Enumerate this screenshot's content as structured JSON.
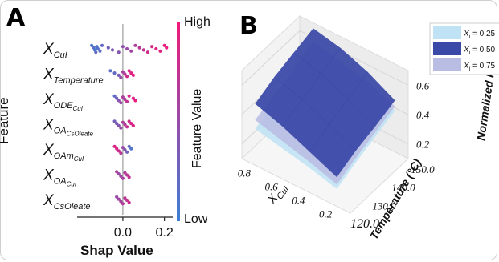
{
  "panels": {
    "a_label": "A",
    "b_label": "B"
  },
  "chart_data": [
    {
      "type": "scatter",
      "variant": "shap-beeswarm",
      "ylabel": "Feature",
      "xlabel": "Shap Value",
      "xticks": [
        "0.0",
        "0.2"
      ],
      "xtick_values": [
        0.0,
        0.2
      ],
      "xlim": [
        -0.22,
        0.24
      ],
      "colorbar": {
        "label": "Feature Value",
        "high": "High",
        "low": "Low",
        "low_color": "#3d7fd6",
        "high_color": "#f0197a"
      },
      "features": [
        {
          "main": "X",
          "sub": "CuI"
        },
        {
          "main": "X",
          "sub": "Temperature"
        },
        {
          "main": "X",
          "sub": "ODE",
          "sub2": "CuI"
        },
        {
          "main": "X",
          "sub": "OA",
          "sub2": "CsOleate"
        },
        {
          "main": "X",
          "sub": "OAm",
          "sub2": "CuI"
        },
        {
          "main": "X",
          "sub": "OA",
          "sub2": "CuI"
        },
        {
          "main": "X",
          "sub": "CsOleate"
        }
      ],
      "points": [
        [
          [
            -0.15,
            0.1
          ],
          [
            -0.14,
            0.15
          ],
          [
            -0.135,
            0.05
          ],
          [
            -0.13,
            0.2
          ],
          [
            -0.125,
            0.1
          ],
          [
            -0.12,
            0.12
          ],
          [
            -0.11,
            0.18
          ],
          [
            -0.1,
            0.2
          ],
          [
            -0.07,
            0.3
          ],
          [
            -0.05,
            0.35
          ],
          [
            -0.02,
            0.4
          ],
          [
            0.0,
            0.45
          ],
          [
            0.02,
            0.5
          ],
          [
            0.04,
            0.55
          ],
          [
            0.06,
            0.6
          ],
          [
            0.08,
            0.7
          ],
          [
            0.1,
            0.75
          ],
          [
            0.12,
            0.8
          ],
          [
            0.14,
            0.85
          ],
          [
            0.16,
            0.9
          ],
          [
            0.18,
            0.92
          ],
          [
            0.2,
            0.95
          ],
          [
            0.21,
            0.98
          ]
        ],
        [
          [
            -0.06,
            0.15
          ],
          [
            -0.04,
            0.2
          ],
          [
            -0.02,
            0.3
          ],
          [
            -0.01,
            0.5
          ],
          [
            0.0,
            0.6
          ],
          [
            0.01,
            0.7
          ],
          [
            0.02,
            0.8
          ],
          [
            0.03,
            0.85
          ],
          [
            0.04,
            0.9
          ],
          [
            0.05,
            0.95
          ]
        ],
        [
          [
            -0.04,
            0.2
          ],
          [
            -0.03,
            0.3
          ],
          [
            -0.02,
            0.4
          ],
          [
            -0.01,
            0.5
          ],
          [
            0.0,
            0.6
          ],
          [
            0.01,
            0.7
          ],
          [
            0.02,
            0.75
          ],
          [
            0.03,
            0.85
          ],
          [
            0.05,
            0.9
          ],
          [
            0.06,
            0.95
          ]
        ],
        [
          [
            -0.04,
            0.3
          ],
          [
            -0.03,
            0.35
          ],
          [
            -0.02,
            0.4
          ],
          [
            -0.01,
            0.5
          ],
          [
            0.0,
            0.6
          ],
          [
            0.01,
            0.65
          ],
          [
            0.02,
            0.75
          ],
          [
            0.03,
            0.8
          ],
          [
            0.04,
            0.85
          ],
          [
            0.05,
            0.9
          ]
        ],
        [
          [
            -0.04,
            0.9
          ],
          [
            -0.03,
            0.85
          ],
          [
            -0.02,
            0.8
          ],
          [
            -0.01,
            0.7
          ],
          [
            0.0,
            0.5
          ],
          [
            0.01,
            0.4
          ],
          [
            0.02,
            0.3
          ],
          [
            0.03,
            0.2
          ],
          [
            0.04,
            0.1
          ]
        ],
        [
          [
            -0.03,
            0.6
          ],
          [
            -0.02,
            0.5
          ],
          [
            -0.01,
            0.55
          ],
          [
            0.0,
            0.6
          ],
          [
            0.01,
            0.65
          ],
          [
            0.02,
            0.7
          ],
          [
            0.03,
            0.75
          ]
        ],
        [
          [
            -0.03,
            0.5
          ],
          [
            -0.02,
            0.55
          ],
          [
            -0.01,
            0.6
          ],
          [
            0.0,
            0.65
          ],
          [
            0.01,
            0.7
          ],
          [
            0.02,
            0.75
          ],
          [
            0.03,
            0.8
          ]
        ]
      ]
    },
    {
      "type": "surface3d",
      "xlabel": "X",
      "xlabel_sub": "CuI",
      "ylabel": "Temperature (°C)",
      "zlabel": "Normalized PL",
      "zlabel_sub": "I",
      "xticks": [
        "0.2",
        "0.4",
        "0.6",
        "0.8"
      ],
      "yticks": [
        "120.0",
        "130.0",
        "140.0",
        "150.0"
      ],
      "zticks": [
        "0.2",
        "0.4",
        "0.6"
      ],
      "xlim": [
        0.1,
        0.9
      ],
      "ylim": [
        120.0,
        150.0
      ],
      "zlim": [
        0.1,
        0.7
      ],
      "surfaces": [
        {
          "name": "X_i = 0.25",
          "legend": "= 0.25",
          "color": "#bfe3f5",
          "z": [
            [
              0.22,
              0.28,
              0.33,
              0.38
            ],
            [
              0.27,
              0.33,
              0.38,
              0.44
            ],
            [
              0.31,
              0.37,
              0.42,
              0.48
            ],
            [
              0.35,
              0.41,
              0.46,
              0.52
            ]
          ]
        },
        {
          "name": "X_i = 0.50",
          "legend": "= 0.50",
          "color": "#3a49a8",
          "z": [
            [
              0.3,
              0.36,
              0.4,
              0.45
            ],
            [
              0.38,
              0.44,
              0.49,
              0.55
            ],
            [
              0.46,
              0.52,
              0.57,
              0.62
            ],
            [
              0.52,
              0.58,
              0.62,
              0.66
            ]
          ]
        },
        {
          "name": "X_i = 0.75",
          "legend": "= 0.75",
          "color": "#b9bde3",
          "z": [
            [
              0.25,
              0.31,
              0.36,
              0.41
            ],
            [
              0.31,
              0.37,
              0.42,
              0.48
            ],
            [
              0.36,
              0.42,
              0.47,
              0.53
            ],
            [
              0.41,
              0.46,
              0.51,
              0.57
            ]
          ]
        }
      ]
    }
  ]
}
